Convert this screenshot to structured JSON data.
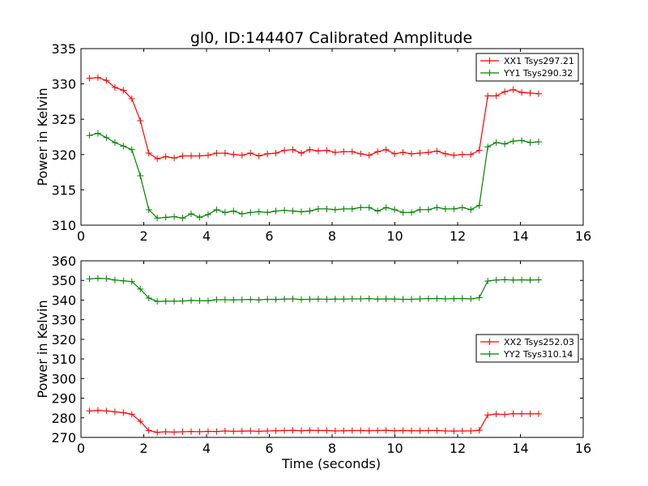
{
  "chart_data": [
    {
      "type": "line",
      "title": "gl0, ID:144407 Calibrated Amplitude",
      "xlabel": "",
      "ylabel": "Power in Kelvin",
      "xlim": [
        0,
        16
      ],
      "ylim": [
        310,
        335
      ],
      "xticks": [
        0,
        2,
        4,
        6,
        8,
        10,
        12,
        14,
        16
      ],
      "yticks": [
        310,
        315,
        320,
        325,
        330,
        335
      ],
      "legend_position": "upper right",
      "x": [
        0.27,
        0.54,
        0.81,
        1.08,
        1.35,
        1.62,
        1.89,
        2.16,
        2.43,
        2.7,
        2.97,
        3.24,
        3.51,
        3.78,
        4.05,
        4.32,
        4.59,
        4.86,
        5.13,
        5.4,
        5.67,
        5.94,
        6.21,
        6.48,
        6.75,
        7.02,
        7.29,
        7.56,
        7.83,
        8.1,
        8.37,
        8.64,
        8.91,
        9.18,
        9.45,
        9.72,
        9.99,
        10.26,
        10.53,
        10.8,
        11.07,
        11.34,
        11.61,
        11.88,
        12.15,
        12.42,
        12.69,
        12.96,
        13.23,
        13.5,
        13.77,
        14.04,
        14.31,
        14.58
      ],
      "series": [
        {
          "name": "XX1 Tsys297.21",
          "color": "#ff0000",
          "values": [
            330.8,
            330.9,
            330.5,
            329.5,
            329.1,
            327.9,
            324.8,
            320.2,
            319.4,
            319.7,
            319.5,
            319.8,
            319.8,
            319.8,
            319.9,
            320.2,
            320.2,
            320.0,
            319.9,
            320.2,
            319.8,
            320.1,
            320.2,
            320.6,
            320.7,
            320.2,
            320.7,
            320.5,
            320.6,
            320.3,
            320.4,
            320.4,
            320.1,
            319.9,
            320.4,
            320.7,
            320.1,
            320.3,
            320.1,
            320.2,
            320.3,
            320.5,
            320.1,
            319.9,
            320.0,
            320.0,
            320.6,
            328.3,
            328.3,
            328.9,
            329.2,
            328.8,
            328.7,
            328.6
          ]
        },
        {
          "name": "YY1 Tsys290.32",
          "color": "#008000",
          "values": [
            322.7,
            323.0,
            322.4,
            321.7,
            321.2,
            320.7,
            317.0,
            312.2,
            311.0,
            311.1,
            311.2,
            311.0,
            311.6,
            311.1,
            311.5,
            312.2,
            311.8,
            312.0,
            311.6,
            311.8,
            311.9,
            311.8,
            312.0,
            312.1,
            312.0,
            311.9,
            312.0,
            312.3,
            312.3,
            312.2,
            312.3,
            312.3,
            312.5,
            312.5,
            312.0,
            312.5,
            312.2,
            311.8,
            311.8,
            312.2,
            312.2,
            312.5,
            312.3,
            312.3,
            312.5,
            312.2,
            312.8,
            321.1,
            321.7,
            321.5,
            321.9,
            322.0,
            321.7,
            321.8
          ]
        }
      ]
    },
    {
      "type": "line",
      "title": "",
      "xlabel": "Time (seconds)",
      "ylabel": "Power in Kelvin",
      "xlim": [
        0,
        16
      ],
      "ylim": [
        270,
        360
      ],
      "xticks": [
        0,
        2,
        4,
        6,
        8,
        10,
        12,
        14,
        16
      ],
      "yticks": [
        270,
        280,
        290,
        300,
        310,
        320,
        330,
        340,
        350,
        360
      ],
      "legend_position": "center right",
      "x": [
        0.27,
        0.54,
        0.81,
        1.08,
        1.35,
        1.62,
        1.89,
        2.16,
        2.43,
        2.7,
        2.97,
        3.24,
        3.51,
        3.78,
        4.05,
        4.32,
        4.59,
        4.86,
        5.13,
        5.4,
        5.67,
        5.94,
        6.21,
        6.48,
        6.75,
        7.02,
        7.29,
        7.56,
        7.83,
        8.1,
        8.37,
        8.64,
        8.91,
        9.18,
        9.45,
        9.72,
        9.99,
        10.26,
        10.53,
        10.8,
        11.07,
        11.34,
        11.61,
        11.88,
        12.15,
        12.42,
        12.69,
        12.96,
        13.23,
        13.5,
        13.77,
        14.04,
        14.31,
        14.58
      ],
      "series": [
        {
          "name": "XX2 Tsys252.03",
          "color": "#ff0000",
          "values": [
            283.5,
            283.8,
            283.5,
            283.0,
            282.6,
            281.8,
            278.2,
            273.5,
            272.6,
            272.9,
            272.7,
            272.9,
            273.0,
            272.9,
            273.1,
            273.0,
            273.3,
            273.1,
            273.2,
            273.3,
            273.1,
            273.3,
            273.4,
            273.5,
            273.6,
            273.4,
            273.6,
            273.5,
            273.5,
            273.3,
            273.4,
            273.5,
            273.5,
            273.4,
            273.5,
            273.6,
            273.4,
            273.5,
            273.4,
            273.4,
            273.5,
            273.5,
            273.3,
            273.2,
            273.3,
            273.3,
            273.6,
            281.4,
            281.9,
            281.7,
            282.1,
            282.0,
            282.0,
            282.0
          ]
        },
        {
          "name": "YY2 Tsys310.14",
          "color": "#008000",
          "values": [
            350.8,
            351.1,
            350.9,
            350.2,
            349.8,
            349.4,
            345.6,
            341.0,
            339.3,
            339.4,
            339.4,
            339.5,
            339.8,
            339.7,
            339.6,
            340.2,
            340.2,
            340.1,
            340.2,
            340.3,
            340.1,
            340.4,
            340.3,
            340.5,
            340.6,
            340.3,
            340.4,
            340.5,
            340.4,
            340.5,
            340.5,
            340.6,
            340.6,
            340.7,
            340.5,
            340.6,
            340.5,
            340.4,
            340.4,
            340.6,
            340.7,
            340.8,
            340.6,
            340.7,
            340.8,
            340.6,
            341.2,
            349.7,
            350.2,
            350.4,
            350.2,
            350.3,
            350.2,
            350.3
          ]
        }
      ]
    }
  ]
}
